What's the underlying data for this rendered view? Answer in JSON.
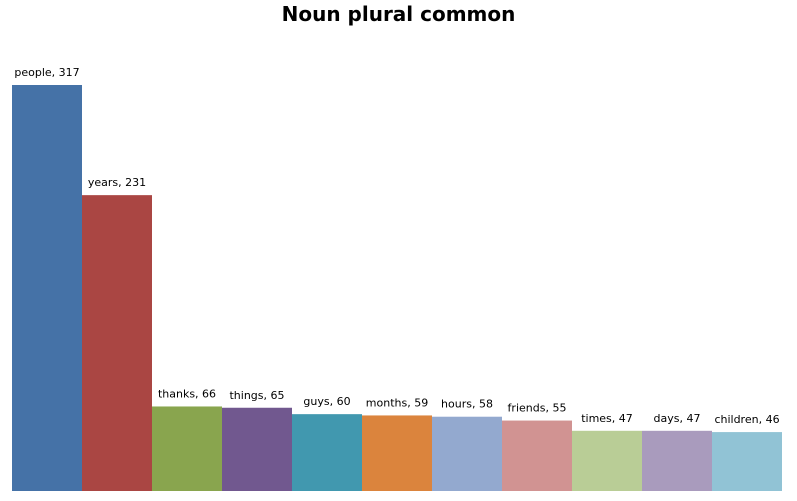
{
  "chart_data": {
    "type": "bar",
    "title": "Noun plural common",
    "categories": [
      "people",
      "years",
      "thanks",
      "things",
      "guys",
      "months",
      "hours",
      "friends",
      "times",
      "days",
      "children"
    ],
    "values": [
      317,
      231,
      66,
      65,
      60,
      59,
      58,
      55,
      47,
      47,
      46
    ],
    "data_labels": [
      "people, 317",
      "years, 231",
      "thanks, 66",
      "things, 65",
      "guys, 60",
      "months, 59",
      "hours, 58",
      "friends, 55",
      "times, 47",
      "days, 47",
      "children, 46"
    ],
    "colors": [
      "#4572a7",
      "#aa4643",
      "#89a54e",
      "#71588f",
      "#4198af",
      "#db843d",
      "#93a9cf",
      "#d19392",
      "#b9cd96",
      "#a99bbd",
      "#91c3d5"
    ],
    "xlabel": "",
    "ylabel": "",
    "ylim": [
      0,
      317
    ],
    "grid": false,
    "legend": "none"
  }
}
